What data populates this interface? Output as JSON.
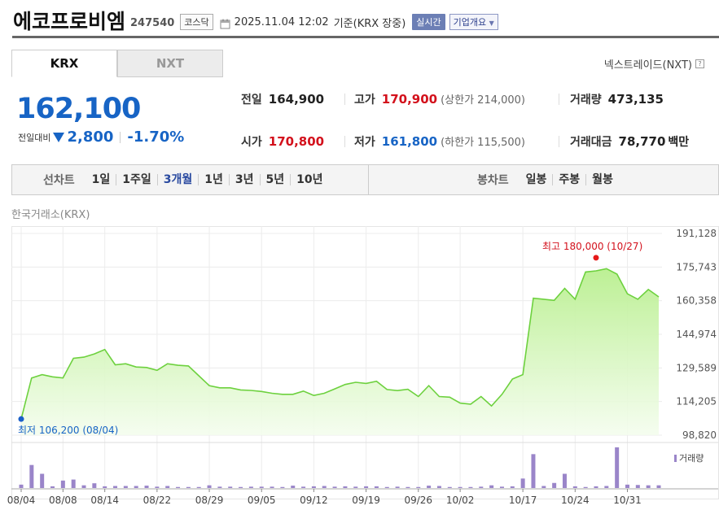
{
  "header": {
    "title": "에코프로비엠",
    "code": "247540",
    "market": "코스닥",
    "date": "2025.11.04 12:02",
    "basis": "기준(KRX 장중)",
    "realtime_label": "실시간",
    "company_label": "기업개요"
  },
  "tabs": [
    {
      "label": "KRX",
      "active": true
    },
    {
      "label": "NXT",
      "active": false
    }
  ],
  "nxt_link": "넥스트레이드(NXT)",
  "help_glyph": "?",
  "price": {
    "current": "162,100",
    "change_label": "전일대비",
    "change_amount": "2,800",
    "change_rate": "-1.70%",
    "direction": "down"
  },
  "info": {
    "prev_close": {
      "label": "전일",
      "value": "164,900"
    },
    "high": {
      "label": "고가",
      "value": "170,900",
      "extra": "(상한가 214,000)"
    },
    "volume": {
      "label": "거래량",
      "value": "473,135"
    },
    "open": {
      "label": "시가",
      "value": "170,800"
    },
    "low": {
      "label": "저가",
      "value": "161,800",
      "extra": "(하한가 115,500)"
    },
    "amount": {
      "label": "거래대금",
      "value": "78,770",
      "unit": "백만"
    }
  },
  "period_bar": {
    "line_label": "선차트",
    "line_items": [
      "1일",
      "1주일",
      "3개월",
      "1년",
      "3년",
      "5년",
      "10년"
    ],
    "line_active": "3개월",
    "candle_label": "봉차트",
    "candle_items": [
      "일봉",
      "주봉",
      "월봉"
    ]
  },
  "source": "한국거래소(KRX)",
  "colors": {
    "up": "#d3111c",
    "down": "#1764c5",
    "line": "#6dd13e",
    "volume_bar": "#9a85c9"
  },
  "chart_data": {
    "type": "area",
    "y_ticks": [
      "191,128",
      "175,743",
      "160,358",
      "144,974",
      "129,589",
      "114,205",
      "98,820"
    ],
    "ylim": [
      98820,
      191128
    ],
    "x_tick_labels": [
      "08/04",
      "08/08",
      "08/14",
      "08/22",
      "08/29",
      "09/05",
      "09/12",
      "09/19",
      "09/26",
      "10/02",
      "10/17",
      "10/24",
      "10/31"
    ],
    "x_tick_index": [
      0,
      4,
      8,
      13,
      18,
      23,
      28,
      33,
      38,
      42,
      48,
      53,
      58
    ],
    "prices": [
      106200,
      125000,
      126500,
      125500,
      125000,
      134000,
      134500,
      136000,
      138000,
      131000,
      131500,
      130000,
      129800,
      128500,
      131500,
      130800,
      130500,
      126000,
      121500,
      120500,
      120500,
      119500,
      119300,
      118800,
      118000,
      117500,
      117500,
      119000,
      117000,
      118000,
      120000,
      122000,
      123000,
      122500,
      123500,
      119700,
      119200,
      119800,
      116500,
      121500,
      116500,
      116200,
      113500,
      113000,
      116500,
      112200,
      117500,
      124500,
      126500,
      161500,
      161000,
      160500,
      166000,
      161000,
      173500,
      174000,
      175000,
      172500,
      163500,
      161000,
      165500,
      162100
    ],
    "volumes": [
      0.1,
      0.68,
      0.42,
      0.05,
      0.22,
      0.25,
      0.08,
      0.14,
      0.05,
      0.06,
      0.06,
      0.06,
      0.07,
      0.04,
      0.06,
      0.03,
      0.03,
      0.03,
      0.08,
      0.04,
      0.04,
      0.03,
      0.04,
      0.04,
      0.04,
      0.03,
      0.07,
      0.04,
      0.05,
      0.06,
      0.04,
      0.05,
      0.04,
      0.05,
      0.05,
      0.03,
      0.04,
      0.03,
      0.03,
      0.07,
      0.06,
      0.03,
      0.03,
      0.03,
      0.04,
      0.08,
      0.04,
      0.05,
      0.28,
      1.0,
      0.06,
      0.15,
      0.42,
      0.05,
      0.03,
      0.05,
      0.06,
      1.2,
      0.1,
      0.09,
      0.08,
      0.08
    ],
    "volume_label": "거래량",
    "max_annotation": {
      "label": "최고 180,000 (10/27)",
      "index": 55,
      "value": 180000
    },
    "min_annotation": {
      "label": "최저 106,200 (08/04)",
      "index": 0,
      "value": 106200
    },
    "grid": true
  }
}
